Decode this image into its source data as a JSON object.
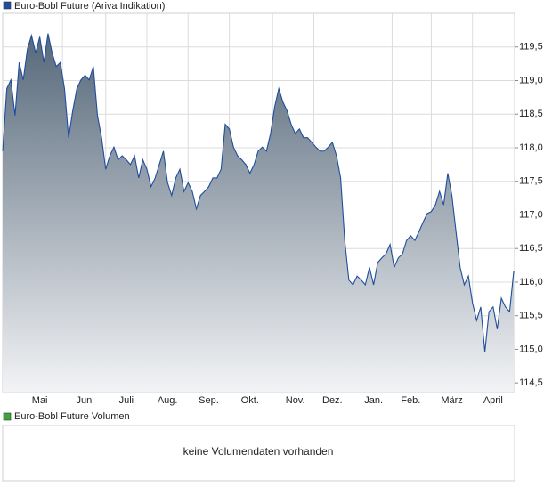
{
  "chart_data": {
    "type": "area",
    "categories": [
      null,
      null,
      null,
      null,
      null,
      null,
      null,
      null,
      null,
      "Mai",
      null,
      null,
      null,
      null,
      null,
      null,
      null,
      null,
      null,
      null,
      "Juni",
      null,
      null,
      null,
      null,
      null,
      null,
      null,
      null,
      null,
      "Juli",
      null,
      null,
      null,
      null,
      null,
      null,
      null,
      null,
      null,
      "Aug.",
      null,
      null,
      null,
      null,
      null,
      null,
      null,
      null,
      null,
      "Sep.",
      null,
      null,
      null,
      null,
      null,
      null,
      null,
      null,
      null,
      "Okt.",
      null,
      null,
      null,
      null,
      null,
      null,
      null,
      null,
      null,
      null,
      "Nov.",
      null,
      null,
      null,
      null,
      null,
      null,
      null,
      null,
      "Dez.",
      null,
      null,
      null,
      null,
      null,
      null,
      null,
      null,
      null,
      "Jan.",
      null,
      null,
      null,
      null,
      null,
      null,
      null,
      null,
      "Feb.",
      null,
      null,
      null,
      null,
      null,
      null,
      null,
      null,
      null,
      "März",
      null,
      null,
      null,
      null,
      null,
      null,
      null,
      null,
      null,
      "April",
      null,
      null,
      null,
      null,
      null
    ],
    "series": [
      {
        "name": "Euro-Bobl Future (Ariva Indikation)",
        "color": "#1f4e9c",
        "values": [
          117.95,
          118.88,
          119.01,
          118.48,
          119.27,
          119.01,
          119.47,
          119.67,
          119.41,
          119.65,
          119.27,
          119.7,
          119.41,
          119.21,
          119.27,
          118.88,
          118.15,
          118.55,
          118.88,
          119.01,
          119.08,
          119.01,
          119.21,
          118.48,
          118.15,
          117.68,
          117.88,
          118.01,
          117.82,
          117.88,
          117.82,
          117.75,
          117.88,
          117.55,
          117.82,
          117.68,
          117.42,
          117.55,
          117.75,
          117.95,
          117.48,
          117.29,
          117.55,
          117.68,
          117.35,
          117.48,
          117.35,
          117.09,
          117.29,
          117.35,
          117.42,
          117.55,
          117.55,
          117.68,
          118.35,
          118.28,
          118.01,
          117.88,
          117.82,
          117.75,
          117.62,
          117.75,
          117.95,
          118.01,
          117.95,
          118.21,
          118.61,
          118.88,
          118.68,
          118.55,
          118.35,
          118.21,
          118.28,
          118.15,
          118.15,
          118.08,
          118.01,
          117.95,
          117.95,
          118.01,
          118.08,
          117.88,
          117.55,
          116.62,
          116.03,
          115.96,
          116.09,
          116.03,
          115.96,
          116.22,
          115.96,
          116.29,
          116.36,
          116.42,
          116.56,
          116.22,
          116.36,
          116.42,
          116.62,
          116.69,
          116.62,
          116.75,
          116.89,
          117.02,
          117.05,
          117.15,
          117.35,
          117.15,
          117.62,
          117.29,
          116.75,
          116.22,
          115.96,
          116.09,
          115.69,
          115.43,
          115.63,
          114.96,
          115.56,
          115.63,
          115.3,
          115.76,
          115.63,
          115.56,
          116.16
        ]
      }
    ],
    "ylim": [
      114.37,
      120.0
    ],
    "yticks": [
      {
        "value": 114.5,
        "label": "114,5"
      },
      {
        "value": 115,
        "label": "115,0"
      },
      {
        "value": 115.5,
        "label": "115,5"
      },
      {
        "value": 116,
        "label": "116,0"
      },
      {
        "value": 116.5,
        "label": "116,5"
      },
      {
        "value": 117,
        "label": "117,0"
      },
      {
        "value": 117.5,
        "label": "117,5"
      },
      {
        "value": 118,
        "label": "118,0"
      },
      {
        "value": 118.5,
        "label": "118,5"
      },
      {
        "value": 119,
        "label": "119,0"
      },
      {
        "value": 119.5,
        "label": "119,5"
      }
    ],
    "grid": true
  },
  "volume_panel": {
    "legend": "Euro-Bobl Future Volumen",
    "color": "#3aa63a",
    "message": "keine Volumendaten vorhanden"
  }
}
